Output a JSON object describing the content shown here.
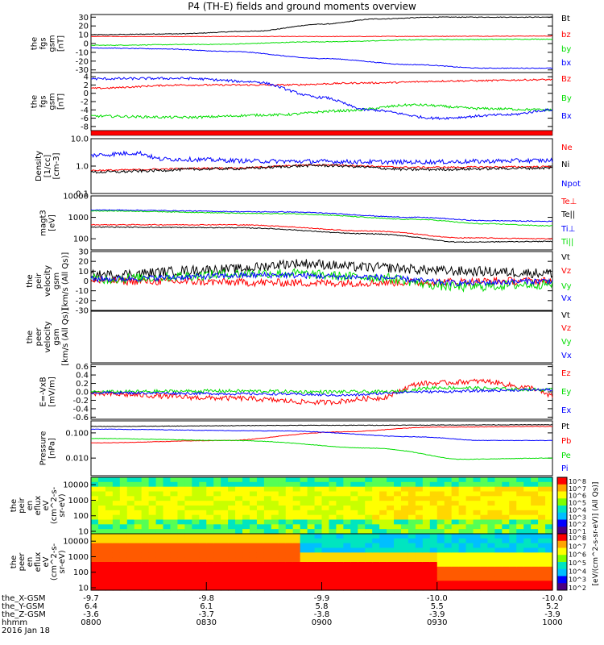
{
  "title": "P4 (TH-E) fields and ground moments overview",
  "chart_data": {
    "type": "line",
    "x_time_ticks": [
      "0800",
      "0830",
      "0900",
      "0930",
      "1000"
    ],
    "panels": [
      {
        "id": "fgs",
        "ylabel": [
          "the",
          "fgs",
          "gsm",
          "[nT]"
        ],
        "yticks": [
          "30",
          "20",
          "10",
          "0",
          "-10",
          "-20",
          "-30"
        ],
        "ylim": [
          -33,
          33
        ],
        "log": false,
        "series": [
          {
            "name": "Bt",
            "color": "#000000",
            "ctrl": [
              [
                0,
                10
              ],
              [
                0.18,
                11
              ],
              [
                0.35,
                14
              ],
              [
                0.5,
                22
              ],
              [
                0.62,
                28
              ],
              [
                0.75,
                30
              ],
              [
                1,
                30
              ]
            ],
            "noise": 0.4
          },
          {
            "name": "bz",
            "color": "#ff0000",
            "ctrl": [
              [
                0,
                8
              ],
              [
                0.5,
                8
              ],
              [
                1,
                8.5
              ]
            ],
            "noise": 0.3
          },
          {
            "name": "by",
            "color": "#00dd00",
            "ctrl": [
              [
                0,
                -2
              ],
              [
                0.25,
                -1
              ],
              [
                0.5,
                2
              ],
              [
                0.75,
                4.5
              ],
              [
                1,
                5
              ]
            ],
            "noise": 0.4
          },
          {
            "name": "bx",
            "color": "#0000ff",
            "ctrl": [
              [
                0,
                -5
              ],
              [
                0.15,
                -6
              ],
              [
                0.3,
                -9
              ],
              [
                0.5,
                -17
              ],
              [
                0.7,
                -24
              ],
              [
                0.85,
                -28
              ],
              [
                1,
                -28
              ]
            ],
            "noise": 0.4
          }
        ]
      },
      {
        "id": "fgm",
        "ylabel": [
          "the",
          "fgs",
          "gsm",
          "[nT]"
        ],
        "yticks": [
          "4",
          "2",
          "0",
          "-2",
          "-4",
          "-6",
          "-8"
        ],
        "ylim": [
          -9,
          5
        ],
        "log": false,
        "series": [
          {
            "name": "Bz",
            "color": "#ff0000",
            "ctrl": [
              [
                0,
                1.2
              ],
              [
                0.2,
                2
              ],
              [
                0.4,
                2
              ],
              [
                0.6,
                2.5
              ],
              [
                0.8,
                3
              ],
              [
                1,
                3.3
              ]
            ],
            "noise": 0.2
          },
          {
            "name": "By",
            "color": "#00dd00",
            "ctrl": [
              [
                0,
                -5.5
              ],
              [
                0.2,
                -5.8
              ],
              [
                0.4,
                -5.2
              ],
              [
                0.55,
                -4.2
              ],
              [
                0.7,
                -2.8
              ],
              [
                0.85,
                -3.7
              ],
              [
                1,
                -4
              ]
            ],
            "noise": 0.3
          },
          {
            "name": "Bx",
            "color": "#0000ff",
            "ctrl": [
              [
                0,
                3.5
              ],
              [
                0.2,
                3.6
              ],
              [
                0.35,
                2.8
              ],
              [
                0.5,
                -1
              ],
              [
                0.6,
                -4
              ],
              [
                0.75,
                -6
              ],
              [
                0.9,
                -5.2
              ],
              [
                1,
                -4
              ]
            ],
            "noise": 0.3
          }
        ]
      },
      {
        "id": "density",
        "ylabel": [
          "Density",
          "[1/cc]",
          "[cm-3]"
        ],
        "yticks": [
          "10.0",
          "1.0",
          "0.1"
        ],
        "ylim": [
          0.1,
          10
        ],
        "log": true,
        "series": [
          {
            "name": "Ne",
            "color": "#ff0000",
            "ctrl": [
              [
                0,
                0.7
              ],
              [
                0.3,
                0.85
              ],
              [
                0.5,
                1.1
              ],
              [
                0.7,
                0.9
              ],
              [
                1,
                0.95
              ]
            ],
            "noise": 0.03
          },
          {
            "name": "Ni",
            "color": "#000000",
            "ctrl": [
              [
                0,
                0.6
              ],
              [
                0.3,
                0.8
              ],
              [
                0.5,
                1.05
              ],
              [
                0.7,
                0.75
              ],
              [
                1,
                0.85
              ]
            ],
            "noise": 0.05
          },
          {
            "name": "Npot",
            "color": "#0000ff",
            "ctrl": [
              [
                0,
                2.5
              ],
              [
                0.1,
                3
              ],
              [
                0.15,
                1.8
              ],
              [
                0.4,
                1.5
              ],
              [
                0.7,
                1.4
              ],
              [
                1,
                1.6
              ]
            ],
            "noise": 0.08
          }
        ]
      },
      {
        "id": "temp",
        "ylabel": [
          "magt3",
          "[eV]"
        ],
        "yticks": [
          "10000",
          "1000",
          "100"
        ],
        "ylim": [
          30,
          10000
        ],
        "log": true,
        "series": [
          {
            "name": "Te⊥",
            "color": "#ff0000",
            "ctrl": [
              [
                0,
                450
              ],
              [
                0.3,
                450
              ],
              [
                0.6,
                230
              ],
              [
                0.8,
                110
              ],
              [
                1,
                100
              ]
            ],
            "noise": 0.02
          },
          {
            "name": "Te||",
            "color": "#000000",
            "ctrl": [
              [
                0,
                350
              ],
              [
                0.3,
                330
              ],
              [
                0.6,
                170
              ],
              [
                0.8,
                70
              ],
              [
                1,
                75
              ]
            ],
            "noise": 0.02
          },
          {
            "name": "Ti⊥",
            "color": "#0000ff",
            "ctrl": [
              [
                0,
                2200
              ],
              [
                0.4,
                1800
              ],
              [
                0.7,
                1000
              ],
              [
                0.85,
                700
              ],
              [
                1,
                650
              ]
            ],
            "noise": 0.02
          },
          {
            "name": "Ti||",
            "color": "#00dd00",
            "ctrl": [
              [
                0,
                2000
              ],
              [
                0.4,
                1500
              ],
              [
                0.7,
                800
              ],
              [
                0.85,
                500
              ],
              [
                1,
                400
              ]
            ],
            "noise": 0.02
          }
        ]
      },
      {
        "id": "peir",
        "ylabel": [
          "the",
          "peir",
          "velocity",
          "gsm",
          "[km/s (All Qs)]"
        ],
        "yticks": [
          "30",
          "20",
          "10",
          "0",
          "-10",
          "-20",
          "-30"
        ],
        "ylim": [
          -30,
          30
        ],
        "log": false,
        "series": [
          {
            "name": "Vt",
            "color": "#000000",
            "ctrl": [
              [
                0,
                6
              ],
              [
                0.3,
                12
              ],
              [
                0.45,
                18
              ],
              [
                0.6,
                14
              ],
              [
                0.8,
                10
              ],
              [
                1,
                8
              ]
            ],
            "noise": 5
          },
          {
            "name": "Vz",
            "color": "#ff0000",
            "ctrl": [
              [
                0,
                0
              ],
              [
                0.5,
                -2
              ],
              [
                1,
                0
              ]
            ],
            "noise": 4
          },
          {
            "name": "Vy",
            "color": "#00dd00",
            "ctrl": [
              [
                0,
                2
              ],
              [
                0.4,
                8
              ],
              [
                0.6,
                4
              ],
              [
                0.8,
                -6
              ],
              [
                1,
                -3
              ]
            ],
            "noise": 5
          },
          {
            "name": "Vx",
            "color": "#0000ff",
            "ctrl": [
              [
                0,
                2
              ],
              [
                0.4,
                6
              ],
              [
                0.6,
                4
              ],
              [
                0.8,
                -2
              ],
              [
                1,
                0
              ]
            ],
            "noise": 3
          }
        ]
      },
      {
        "id": "peer",
        "ylabel": [
          "the",
          "peer",
          "velocity",
          "gsm",
          "[km/s (All Qs)]"
        ],
        "yticks": [],
        "ylim": [
          -1,
          1
        ],
        "log": false,
        "series": [
          {
            "name": "Vt",
            "color": "#000000",
            "ctrl": [],
            "noise": 0
          },
          {
            "name": "Vz",
            "color": "#ff0000",
            "ctrl": [],
            "noise": 0
          },
          {
            "name": "Vy",
            "color": "#00dd00",
            "ctrl": [],
            "noise": 0
          },
          {
            "name": "Vx",
            "color": "#0000ff",
            "ctrl": [],
            "noise": 0
          }
        ]
      },
      {
        "id": "efield",
        "ylabel": [
          "E=-VxB",
          "[mV/m]"
        ],
        "yticks": [
          "0.6",
          "0.4",
          "0.2",
          "0.0",
          "-0.2",
          "-0.4",
          "-0.6"
        ],
        "ylim": [
          -0.65,
          0.65
        ],
        "log": false,
        "series": [
          {
            "name": "Ez",
            "color": "#ff0000",
            "ctrl": [
              [
                0,
                -0.05
              ],
              [
                0.3,
                -0.15
              ],
              [
                0.5,
                -0.25
              ],
              [
                0.62,
                -0.15
              ],
              [
                0.72,
                0.2
              ],
              [
                0.85,
                0.25
              ],
              [
                0.95,
                0.1
              ],
              [
                1,
                -0.1
              ]
            ],
            "noise": 0.06
          },
          {
            "name": "Ey",
            "color": "#00dd00",
            "ctrl": [
              [
                0,
                0.0
              ],
              [
                0.3,
                0.02
              ],
              [
                0.5,
                0.0
              ],
              [
                0.65,
                0.0
              ],
              [
                0.75,
                0.1
              ],
              [
                1,
                0.05
              ]
            ],
            "noise": 0.04
          },
          {
            "name": "Ex",
            "color": "#0000ff",
            "ctrl": [
              [
                0,
                -0.02
              ],
              [
                0.4,
                -0.05
              ],
              [
                0.55,
                -0.08
              ],
              [
                0.7,
                0.0
              ],
              [
                1,
                0.05
              ]
            ],
            "noise": 0.03
          }
        ]
      },
      {
        "id": "pressure",
        "ylabel": [
          "Pressure",
          "[nPa]"
        ],
        "yticks": [
          "0.100",
          "0.010"
        ],
        "ylim": [
          0.002,
          0.3
        ],
        "log": true,
        "series": [
          {
            "name": "Pt",
            "color": "#000000",
            "ctrl": [
              [
                0,
                0.18
              ],
              [
                0.5,
                0.2
              ],
              [
                1,
                0.21
              ]
            ],
            "noise": 0.01
          },
          {
            "name": "Pb",
            "color": "#ff0000",
            "ctrl": [
              [
                0,
                0.04
              ],
              [
                0.3,
                0.05
              ],
              [
                0.55,
                0.11
              ],
              [
                0.75,
                0.17
              ],
              [
                1,
                0.18
              ]
            ],
            "noise": 0.01
          },
          {
            "name": "Pe",
            "color": "#00dd00",
            "ctrl": [
              [
                0,
                0.06
              ],
              [
                0.3,
                0.05
              ],
              [
                0.6,
                0.025
              ],
              [
                0.8,
                0.009
              ],
              [
                1,
                0.01
              ]
            ],
            "noise": 0.01
          },
          {
            "name": "Pi",
            "color": "#0000ff",
            "ctrl": [
              [
                0,
                0.14
              ],
              [
                0.4,
                0.12
              ],
              [
                0.7,
                0.07
              ],
              [
                0.85,
                0.05
              ],
              [
                1,
                0.05
              ]
            ],
            "noise": 0.01
          }
        ]
      }
    ],
    "spectrograms": [
      {
        "id": "peir_en",
        "ylabel": [
          "the",
          "peir",
          "en",
          "eflux",
          "eV",
          "(cm^2-s-",
          "sr-eV)"
        ],
        "yticks": [
          "10000",
          "1000",
          "100",
          "10"
        ],
        "colorbar_ticks": [
          "10^8",
          "10^7",
          "10^6",
          "10^5",
          "10^4",
          "10^3",
          "10^2",
          "10^1"
        ]
      },
      {
        "id": "peer_en",
        "ylabel": [
          "the",
          "peer",
          "en",
          "eflux",
          "eV",
          "(cm^2-s-",
          "sr-eV)"
        ],
        "yticks": [
          "10000",
          "1000",
          "100",
          "10"
        ],
        "colorbar_ticks": [
          "10^8",
          "10^7",
          "10^6",
          "10^5",
          "10^4",
          "10^3",
          "10^2"
        ]
      }
    ],
    "colorbar_label": "[eV/(cm^2-s-sr-eV)] (All Qs)]",
    "ephemeris": {
      "rows": [
        {
          "label": "the_X-GSM",
          "values": [
            "-9.7",
            "-9.8",
            "-9.9",
            "-10.0",
            "-10.0"
          ]
        },
        {
          "label": "the_Y-GSM",
          "values": [
            "6.4",
            "6.1",
            "5.8",
            "5.5",
            "5.2"
          ]
        },
        {
          "label": "the_Z-GSM",
          "values": [
            "-3.6",
            "-3.7",
            "-3.8",
            "-3.9",
            "-3.9"
          ]
        },
        {
          "label": "hhmm",
          "values": [
            "0800",
            "0830",
            "0900",
            "0930",
            "1000"
          ]
        }
      ],
      "date": "2016 Jan 18"
    }
  }
}
